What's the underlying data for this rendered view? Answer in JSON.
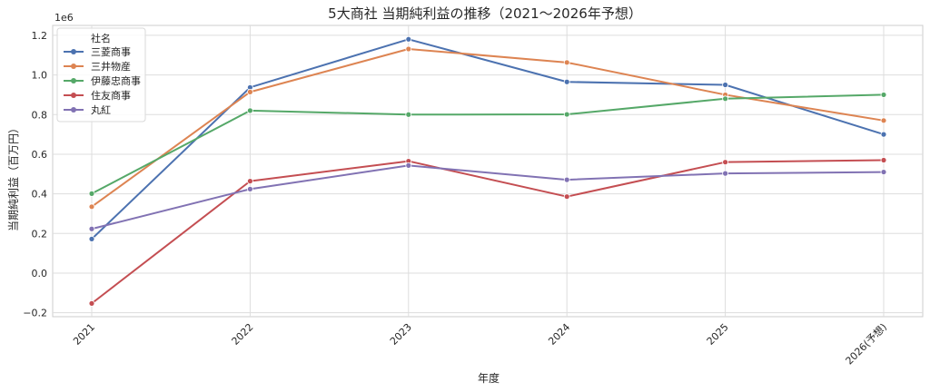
{
  "chart_data": {
    "type": "line",
    "title": "5大商社 当期純利益の推移（2021〜2026年予想）",
    "xlabel": "年度",
    "ylabel": "当期純利益（百万円）",
    "y_multiplier_label": "1e6",
    "categories": [
      "2021",
      "2022",
      "2023",
      "2024",
      "2025",
      "2026(予想)"
    ],
    "y_ticks": [
      "−0.2",
      "0.0",
      "0.2",
      "0.4",
      "0.6",
      "0.8",
      "1.0",
      "1.2"
    ],
    "y_tick_values": [
      -0.2,
      0.0,
      0.2,
      0.4,
      0.6,
      0.8,
      1.0,
      1.2
    ],
    "ylim": [
      -0.22,
      1.25
    ],
    "grid": true,
    "legend": {
      "title": "社名",
      "placement": "top-left"
    },
    "series": [
      {
        "name": "三菱商事",
        "color": "#4c72b0",
        "values": [
          0.172,
          0.937,
          1.18,
          0.965,
          0.95,
          0.7
        ]
      },
      {
        "name": "三井物産",
        "color": "#dd8452",
        "values": [
          0.335,
          0.914,
          1.131,
          1.063,
          0.9,
          0.77
        ]
      },
      {
        "name": "伊藤忠商事",
        "color": "#55a868",
        "values": [
          0.401,
          0.82,
          0.8,
          0.801,
          0.88,
          0.9
        ]
      },
      {
        "name": "住友商事",
        "color": "#c44e52",
        "values": [
          -0.153,
          0.464,
          0.565,
          0.386,
          0.56,
          0.57
        ]
      },
      {
        "name": "丸紅",
        "color": "#8172b3",
        "values": [
          0.223,
          0.424,
          0.543,
          0.471,
          0.503,
          0.51
        ]
      }
    ]
  }
}
